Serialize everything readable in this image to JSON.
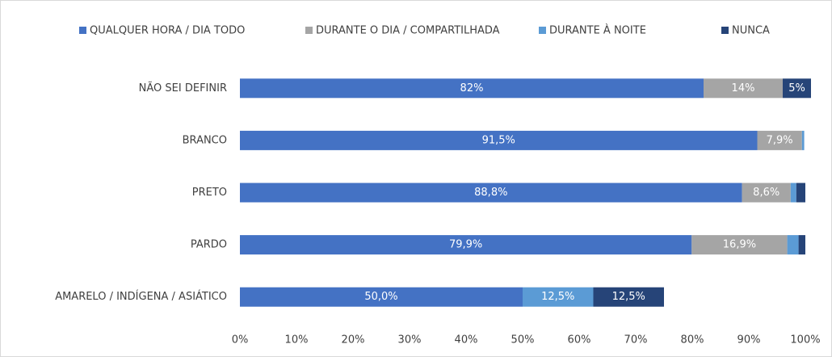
{
  "chart_data": {
    "type": "stacked-barh",
    "categories": [
      "NÃO SEI DEFINIR",
      "BRANCO",
      "PRETO",
      "PARDO",
      "AMARELO / INDÍGENA / ASIÁTICO"
    ],
    "series": [
      {
        "name": "QUALQUER HORA / DIA TODO",
        "color": "#4472c4",
        "values": [
          82,
          91.5,
          88.8,
          79.9,
          50.0
        ],
        "value_labels": [
          "82%",
          "91,5%",
          "88,8%",
          "79,9%",
          "50,0%"
        ]
      },
      {
        "name": "DURANTE O DIA / COMPARTILHADA",
        "color": "#a5a5a5",
        "values": [
          14,
          7.9,
          8.6,
          16.9,
          null
        ],
        "value_labels": [
          "14%",
          "7,9%",
          "8,6%",
          "16,9%",
          null
        ]
      },
      {
        "name": "DURANTE À NOITE",
        "color": "#5b9bd5",
        "values": [
          null,
          0.4,
          1.0,
          2.0,
          12.5
        ],
        "value_labels": [
          null,
          null,
          null,
          null,
          "12,5%"
        ]
      },
      {
        "name": "NUNCA",
        "color": "#264478",
        "values": [
          5,
          null,
          1.6,
          1.2,
          12.5
        ],
        "value_labels": [
          "5%",
          null,
          null,
          null,
          "12,5%"
        ]
      }
    ],
    "xlim": [
      0,
      100
    ],
    "xticks": [
      {
        "value": 0,
        "label": "0%"
      },
      {
        "value": 10,
        "label": "10%"
      },
      {
        "value": 20,
        "label": "20%"
      },
      {
        "value": 30,
        "label": "30%"
      },
      {
        "value": 40,
        "label": "40%"
      },
      {
        "value": 50,
        "label": "50%"
      },
      {
        "value": 60,
        "label": "60%"
      },
      {
        "value": 70,
        "label": "70%"
      },
      {
        "value": 80,
        "label": "80%"
      },
      {
        "value": 90,
        "label": "90%"
      },
      {
        "value": 100,
        "label": "100%"
      }
    ],
    "legend": "top"
  }
}
